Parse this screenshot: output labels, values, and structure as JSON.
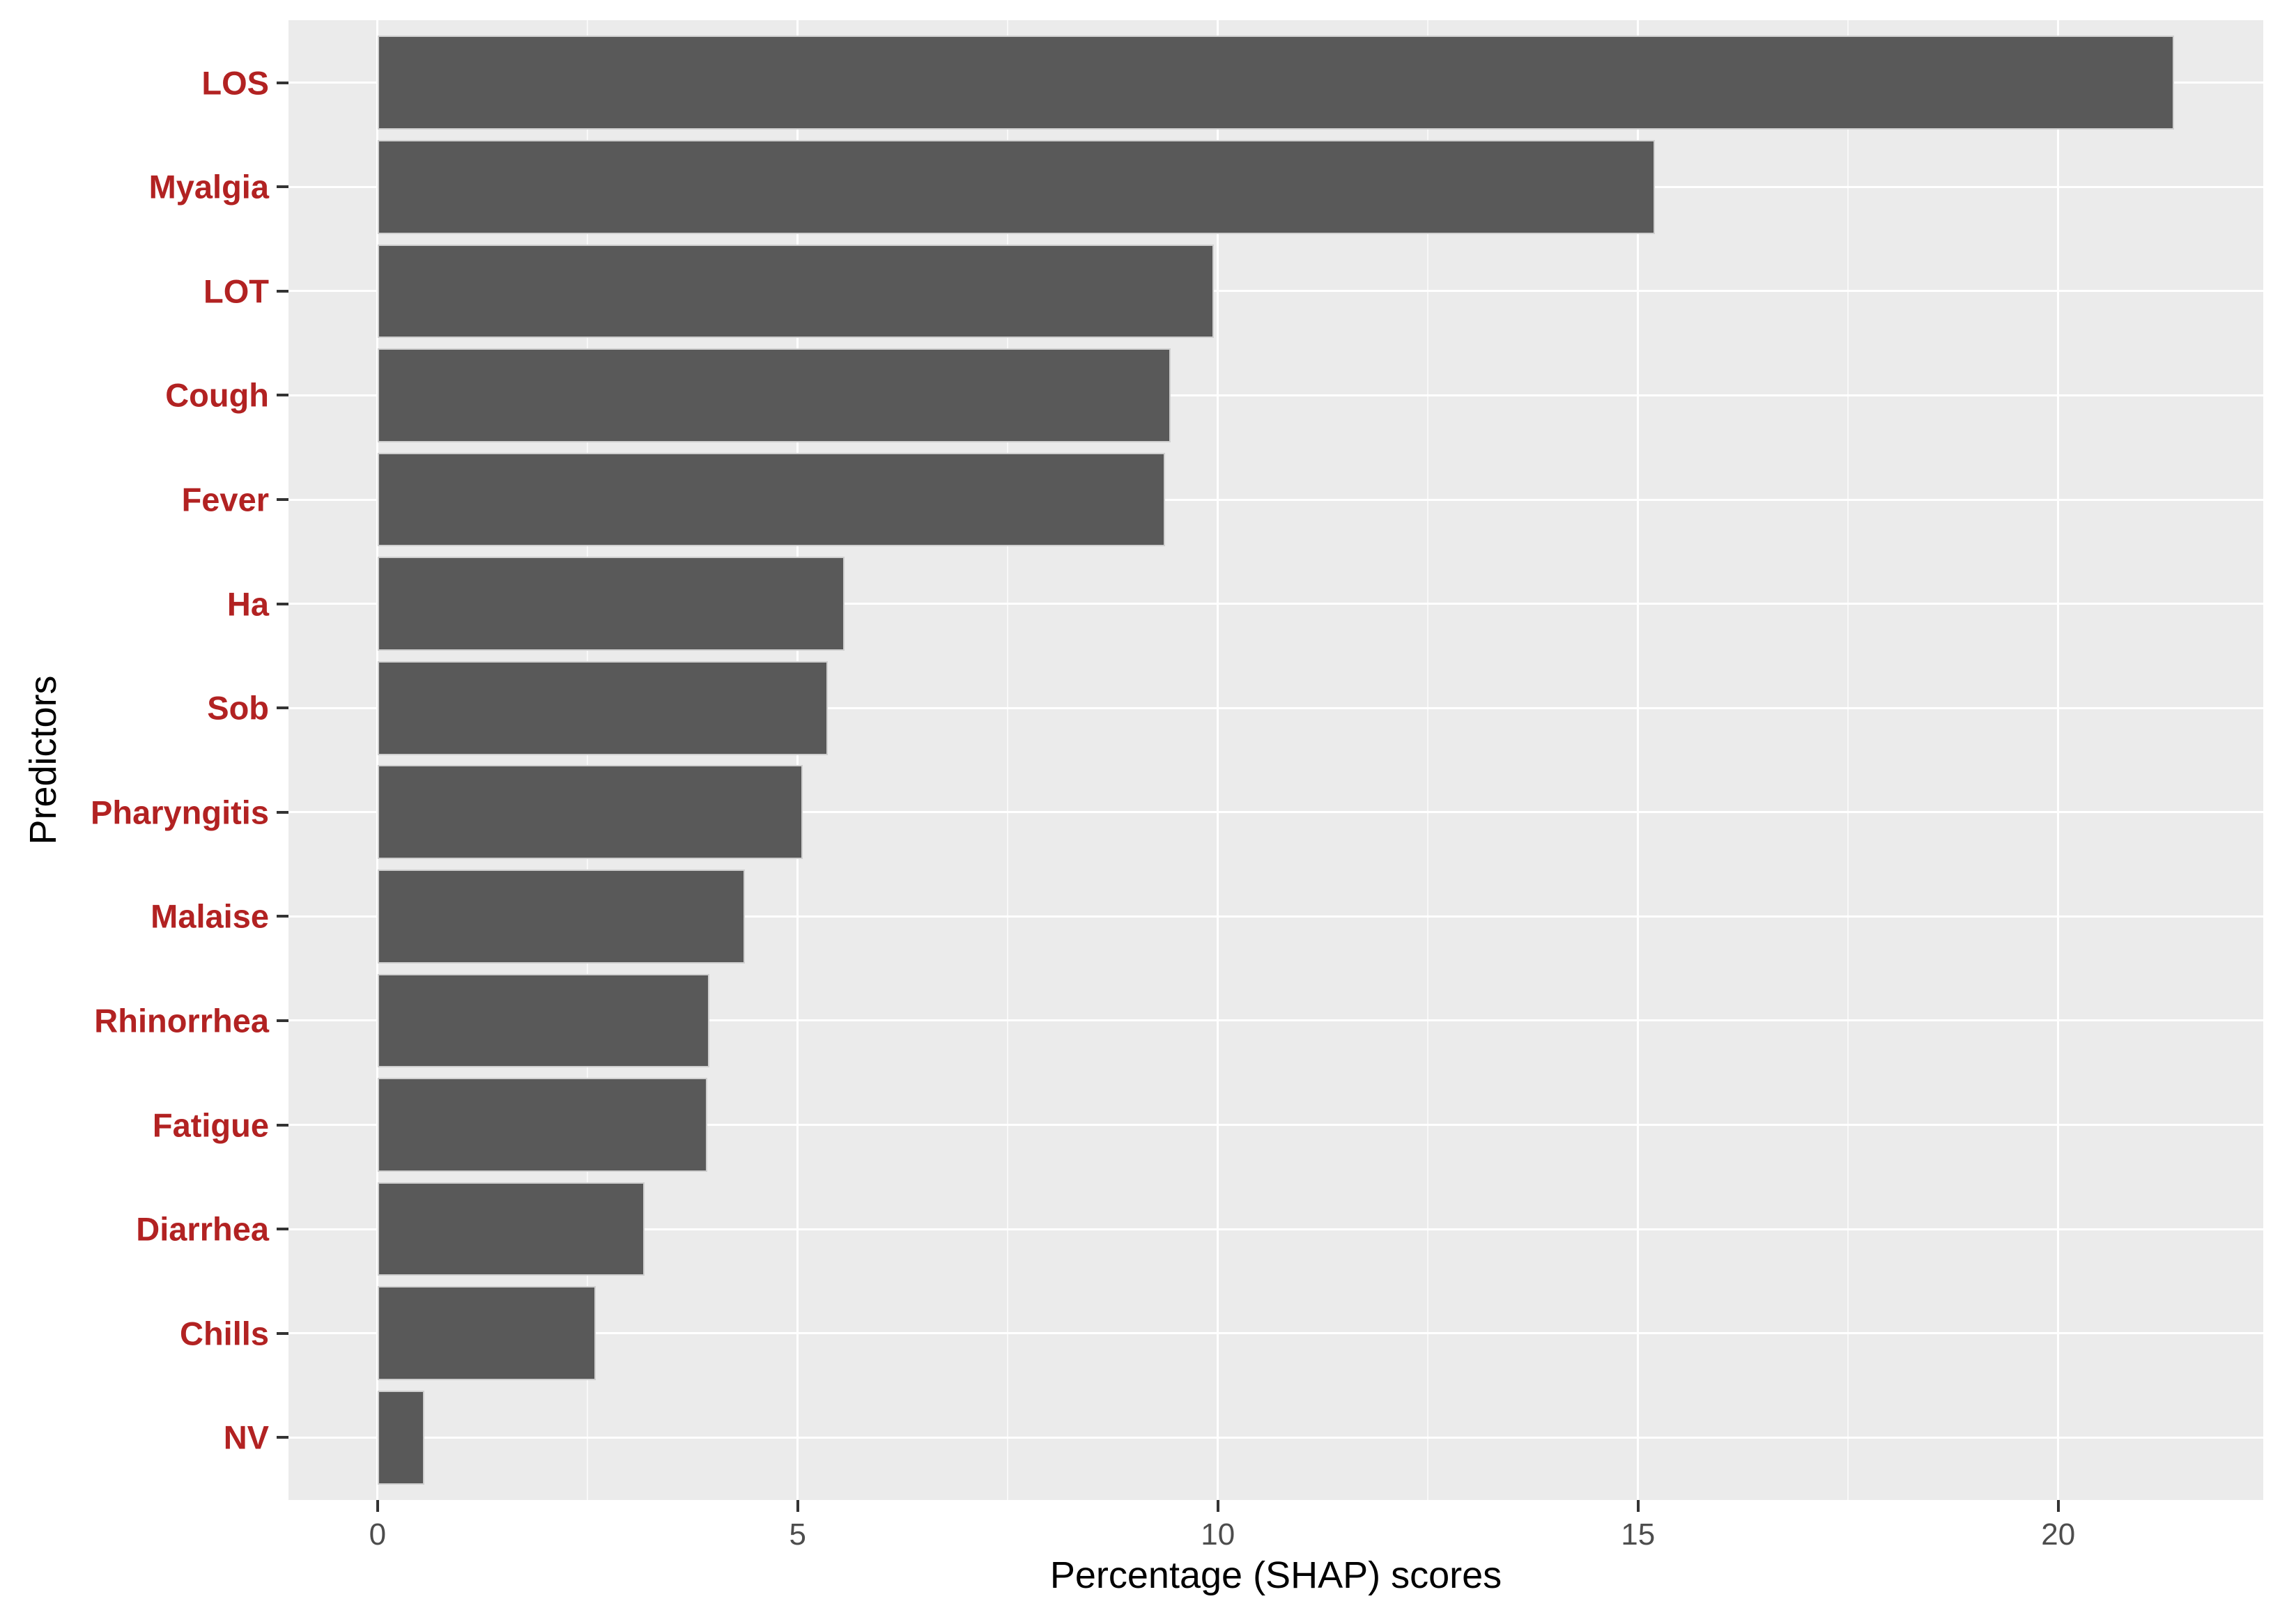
{
  "chart_data": {
    "type": "bar",
    "orientation": "horizontal",
    "title": "",
    "xlabel": "Percentage (SHAP) scores",
    "ylabel": "Predictors",
    "categories": [
      "LOS",
      "Myalgia",
      "LOT",
      "Cough",
      "Fever",
      "Ha",
      "Sob",
      "Pharyngitis",
      "Malaise",
      "Rhinorrhea",
      "Fatigue",
      "Diarrhea",
      "Chills",
      "NV"
    ],
    "values": [
      21.38,
      15.2,
      9.95,
      9.44,
      9.37,
      5.56,
      5.36,
      5.06,
      4.37,
      3.95,
      3.92,
      3.18,
      2.6,
      0.56
    ],
    "x_ticks": [
      0,
      5,
      10,
      15,
      20
    ],
    "x_minor_gridlines": [
      2.5,
      7.5,
      12.5,
      17.5
    ],
    "xlim": [
      -1.06,
      22.44
    ],
    "bar_width_fraction": 0.9,
    "grid": "white major and minor vertical lines plus major horizontal lines on gray panel",
    "legend": "none",
    "colors": {
      "bar_fill": "#595959",
      "bar_border": "#cfcfcf",
      "panel_background": "#ebebeb",
      "gridline": "#ffffff",
      "category_label": "#b22222",
      "tick_label": "#4d4d4d",
      "axis_title": "#000000",
      "tick_mark": "#333333",
      "figure_background": "#ffffff"
    }
  }
}
